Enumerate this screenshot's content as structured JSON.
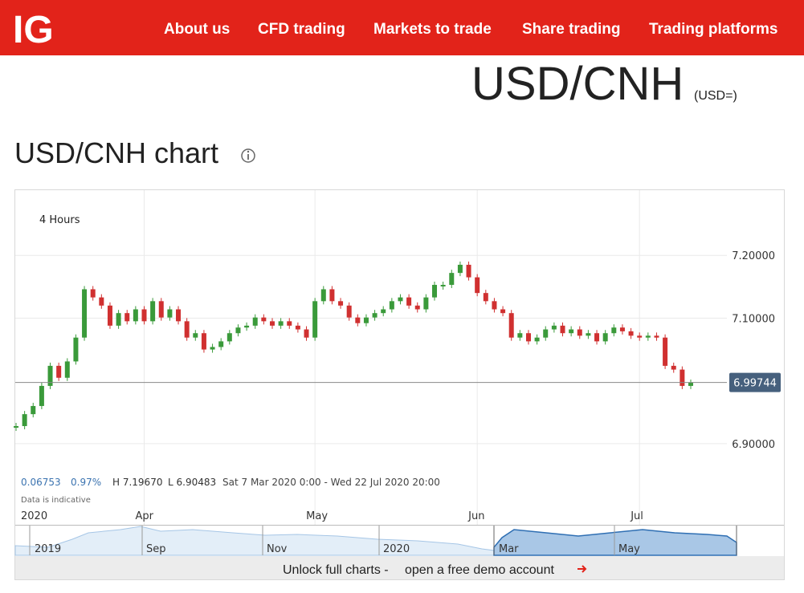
{
  "nav": {
    "logo": "IG",
    "links": [
      "About us",
      "CFD trading",
      "Markets to trade",
      "Share trading",
      "Trading platforms"
    ]
  },
  "instrument": {
    "name": "USD/CNH",
    "code": "(USD=)"
  },
  "chart_heading": "USD/CNH chart",
  "chart_data": {
    "type": "candlestick",
    "interval": "4 Hours",
    "categories": [
      "2020",
      null,
      null,
      null,
      null,
      null,
      null,
      null,
      null,
      null,
      null,
      null,
      null,
      null,
      null,
      "Apr",
      null,
      null,
      null,
      null,
      null,
      null,
      null,
      null,
      null,
      null,
      null,
      null,
      null,
      null,
      null,
      null,
      null,
      null,
      null,
      "May",
      null,
      null,
      null,
      null,
      null,
      null,
      null,
      null,
      null,
      null,
      null,
      null,
      null,
      null,
      null,
      null,
      null,
      null,
      "Jun",
      null,
      null,
      null,
      null,
      null,
      null,
      null,
      null,
      null,
      null,
      null,
      null,
      null,
      null,
      null,
      null,
      null,
      null,
      "Jul",
      null,
      null,
      null,
      null,
      null,
      null
    ],
    "values": [
      6.928,
      6.947,
      6.96,
      6.992,
      7.024,
      7.005,
      7.031,
      7.069,
      7.146,
      7.133,
      7.12,
      7.088,
      7.108,
      7.095,
      7.114,
      7.095,
      7.127,
      7.101,
      7.114,
      7.095,
      7.069,
      7.076,
      7.05,
      7.054,
      7.063,
      7.076,
      7.085,
      7.088,
      7.101,
      7.095,
      7.088,
      7.095,
      7.088,
      7.082,
      7.069,
      7.127,
      7.146,
      7.127,
      7.12,
      7.101,
      7.092,
      7.101,
      7.108,
      7.114,
      7.127,
      7.133,
      7.12,
      7.114,
      7.133,
      7.153,
      7.153,
      7.172,
      7.185,
      7.165,
      7.14,
      7.127,
      7.114,
      7.108,
      7.069,
      7.076,
      7.063,
      7.069,
      7.082,
      7.088,
      7.076,
      7.082,
      7.072,
      7.076,
      7.063,
      7.076,
      7.085,
      7.079,
      7.072,
      7.069,
      7.072,
      7.069,
      7.024,
      7.018,
      6.992,
      6.997
    ],
    "up_color": "#3a9a3a",
    "down_color": "#d03030",
    "ylim": [
      6.85,
      7.3
    ],
    "yticks": [
      {
        "value": 6.9,
        "label": "6.90000"
      },
      {
        "value": 7.1,
        "label": "7.10000"
      },
      {
        "value": 7.2,
        "label": "7.20000"
      }
    ],
    "grid": true,
    "last_price": 6.99744,
    "stats": {
      "change": "0.06753",
      "change_pct": "0.97%",
      "high": "H 7.19670",
      "low": "L 6.90483",
      "range": "Sat 7 Mar 2020 0:00 - Wed 22 Jul 2020 20:00"
    },
    "note": "Data is indicative"
  },
  "navigator": {
    "labels": [
      "2019",
      "Sep",
      "Nov",
      "2020",
      "Mar",
      "May"
    ]
  },
  "footer": {
    "text": "Unlock full charts -",
    "link": "open a free demo account"
  }
}
